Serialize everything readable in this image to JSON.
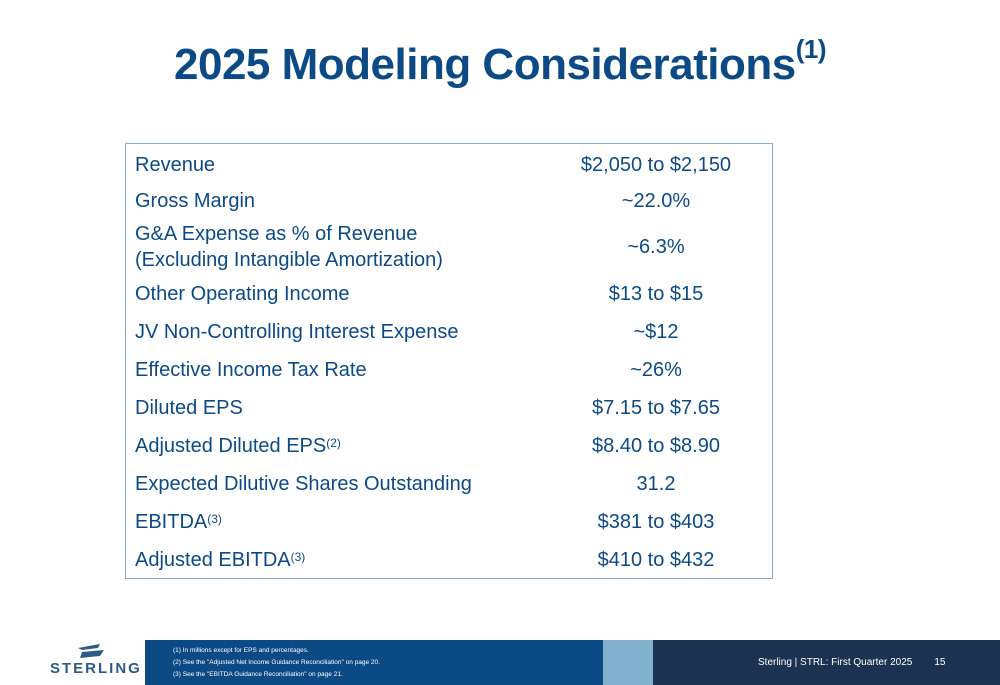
{
  "title": {
    "text": "2025 Modeling Considerations",
    "sup": "(1)"
  },
  "rows": [
    {
      "label": "Revenue",
      "value": "$2,050 to $2,150"
    },
    {
      "label": "Gross Margin",
      "value": "~22.0%"
    },
    {
      "label": "G&A Expense as % of Revenue (Excluding Intangible Amortization)",
      "value": "~6.3%"
    },
    {
      "label": "Other Operating Income",
      "value": "$13 to $15"
    },
    {
      "label": "JV Non-Controlling Interest Expense",
      "value": "~$12"
    },
    {
      "label": "Effective Income Tax Rate",
      "value": "~26%"
    },
    {
      "label": "Diluted EPS",
      "value": "$7.15 to $7.65"
    },
    {
      "label": "Adjusted Diluted EPS",
      "sup": "(2)",
      "value": "$8.40 to $8.90"
    },
    {
      "label": "Expected Dilutive Shares Outstanding",
      "value": "31.2"
    },
    {
      "label": "EBITDA",
      "sup": "(3)",
      "value": "$381 to $403"
    },
    {
      "label": "Adjusted EBITDA",
      "sup": "(3)",
      "value": "$410 to $432"
    }
  ],
  "footer": {
    "logo_text": "STERLING",
    "notes": [
      "(1) In millions except for EPS and percentages.",
      "(2) See the \"Adjusted Net Income Guidance Reconciliation\" on page 20.",
      "(3) See the \"EBITDA Guidance Reconciliation\" on page 21."
    ],
    "page_label": "Sterling | STRL:  First Quarter 2025",
    "page_number": "15"
  },
  "colors": {
    "title": "#0c4a86",
    "table_text": "#0c4a86",
    "table_border": "#86a9d3",
    "footer_blue": "#0c4a86",
    "footer_light": "#7fb0cc",
    "footer_dark": "#1b3250"
  }
}
